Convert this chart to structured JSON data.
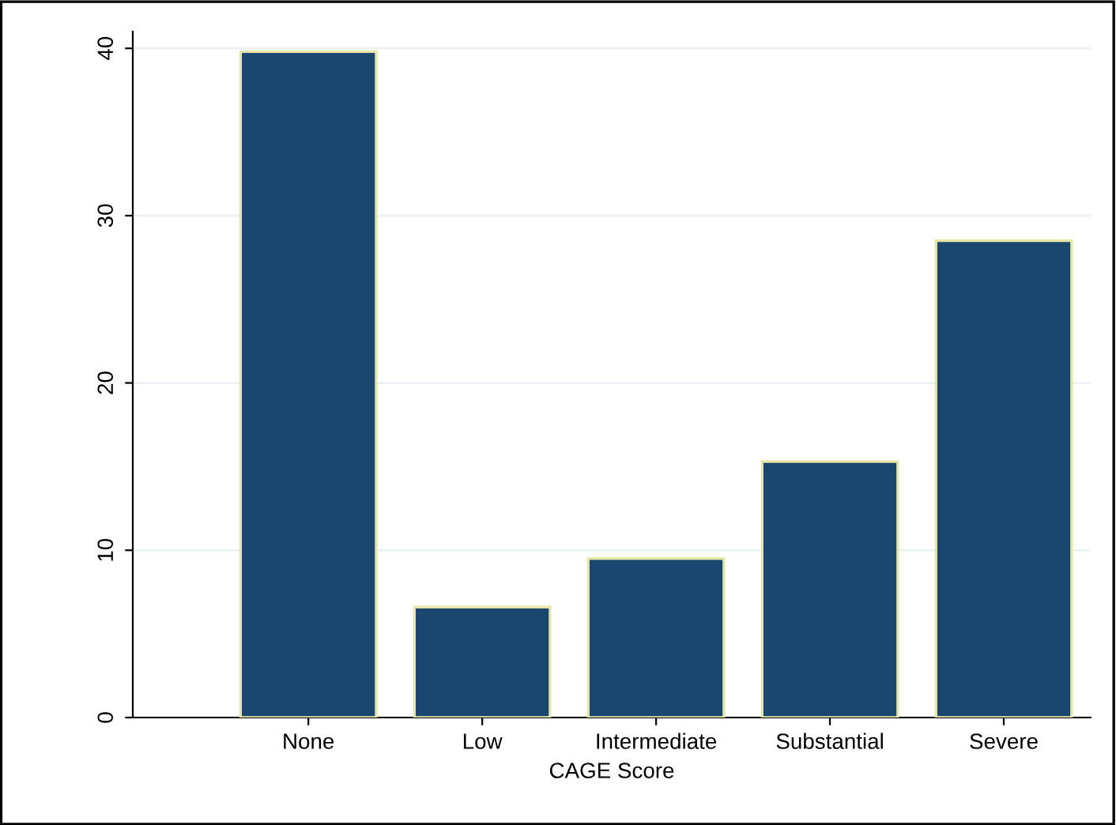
{
  "chart_data": {
    "type": "bar",
    "xlabel": "CAGE Score",
    "categories": [
      "None",
      "Low",
      "Intermediate",
      "Substantial",
      "Severe"
    ],
    "values": [
      39.8,
      6.6,
      9.5,
      15.3,
      28.5
    ],
    "color": "#1a476f",
    "ylim": [
      0,
      41
    ],
    "yticks": [
      0,
      10,
      20,
      30,
      40
    ],
    "grid": "y"
  }
}
